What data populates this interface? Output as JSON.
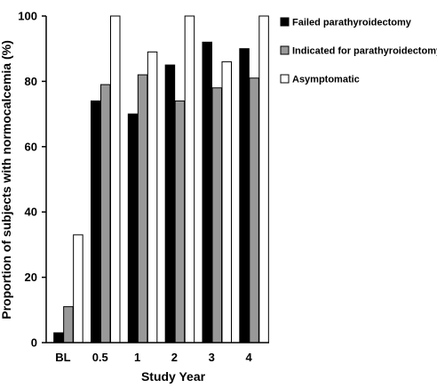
{
  "chart_data": {
    "type": "bar",
    "title": "",
    "xlabel": "Study Year",
    "ylabel": "Proportion of subjects with normocalcemia (%)",
    "ylim": [
      0,
      100
    ],
    "yticks": [
      0,
      20,
      40,
      60,
      80,
      100
    ],
    "categories": [
      "BL",
      "0.5",
      "1",
      "2",
      "3",
      "4"
    ],
    "grid": false,
    "legend_position": "top-right",
    "series": [
      {
        "name": "Failed parathyroidectomy",
        "color": "#000000",
        "values": [
          3,
          74,
          70,
          85,
          92,
          90
        ]
      },
      {
        "name": "Indicated for parathyroidectomy",
        "color": "#999999",
        "values": [
          11,
          79,
          82,
          74,
          78,
          81
        ]
      },
      {
        "name": "Asymptomatic",
        "color": "#ffffff",
        "values": [
          33,
          100,
          89,
          100,
          86,
          100
        ]
      }
    ]
  }
}
